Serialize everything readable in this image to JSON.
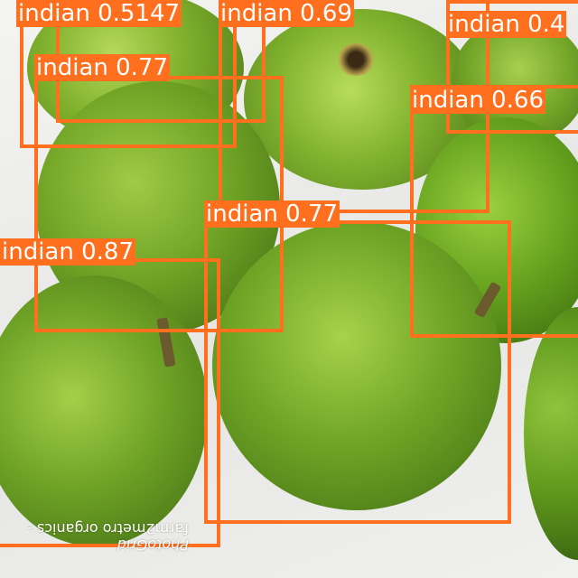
{
  "photo": {
    "subject": "mango-fruits",
    "background_color": "#f2f2f0",
    "fruit_color": "#7fb02c"
  },
  "detections": [
    {
      "label": "indian 0.5147"
    },
    {
      "label": "indian 0.69"
    },
    {
      "label": "indian 0.4"
    },
    {
      "label": "indian 0.77"
    },
    {
      "label": "indian 0.66"
    },
    {
      "label": "indian 0.77"
    },
    {
      "label": "indian 0.87"
    }
  ],
  "watermark": {
    "line1": "farm2metro organics -",
    "line2": "PhotoGrid"
  },
  "box_color": "#ff6f1e"
}
